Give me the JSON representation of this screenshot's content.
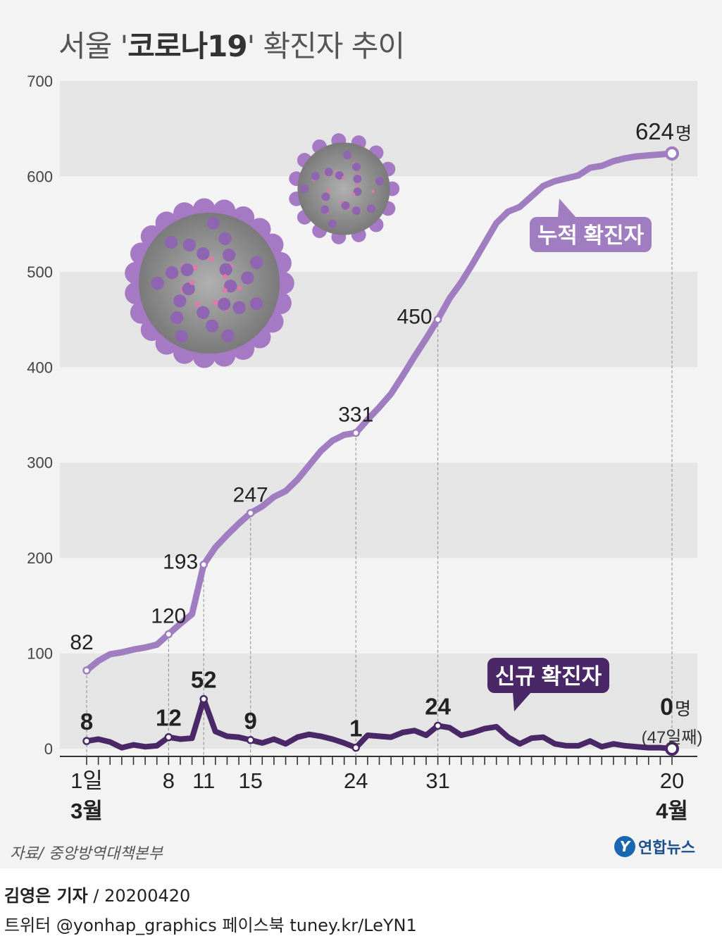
{
  "title": {
    "prefix": "서울 '",
    "bold": "코로나19",
    "suffix": "' 확진자 추이"
  },
  "source": "자료/ 중앙방역대책본부",
  "logo": {
    "mark": "Y",
    "text": "연합뉴스"
  },
  "credit": {
    "author": "김영은 기자",
    "date": " / 20200420",
    "sns": "트위터 @yonhap_graphics  페이스북 tuney.kr/LeYN1"
  },
  "colors": {
    "cumulative": "#a07cc0",
    "new": "#4a2868",
    "band": "#e5e5e5",
    "panel": "#f3f3f3"
  },
  "illustrations": [
    "coronavirus-particle-large",
    "coronavirus-particle-small"
  ],
  "chart_data": {
    "type": "line",
    "title": "서울 '코로나19' 확진자 추이",
    "ylim": [
      0,
      700
    ],
    "yticks": [
      0,
      100,
      200,
      300,
      400,
      500,
      600,
      700
    ],
    "x_days": 51,
    "xtick_labels": [
      {
        "day": 1,
        "label": "1일"
      },
      {
        "day": 8,
        "label": "8"
      },
      {
        "day": 11,
        "label": "11"
      },
      {
        "day": 15,
        "label": "15"
      },
      {
        "day": 24,
        "label": "24"
      },
      {
        "day": 31,
        "label": "31"
      },
      {
        "day": 51,
        "label": "20"
      }
    ],
    "month_labels": [
      {
        "day": 1,
        "label": "3월"
      },
      {
        "day": 51,
        "label": "4월"
      }
    ],
    "series": [
      {
        "name": "누적 확진자",
        "values": [
          82,
          92,
          99,
          101,
          104,
          106,
          109,
          120,
          131,
          141,
          193,
          211,
          224,
          236,
          247,
          254,
          264,
          270,
          282,
          297,
          312,
          323,
          329,
          331,
          345,
          358,
          372,
          391,
          411,
          430,
          450,
          472,
          489,
          509,
          530,
          551,
          563,
          568,
          579,
          590,
          595,
          598,
          601,
          609,
          611,
          616,
          619,
          621,
          622,
          623,
          624
        ],
        "annotations": [
          {
            "day": 1,
            "label": "82"
          },
          {
            "day": 8,
            "label": "120"
          },
          {
            "day": 11,
            "label": "193"
          },
          {
            "day": 15,
            "label": "247"
          },
          {
            "day": 24,
            "label": "331"
          },
          {
            "day": 31,
            "label": "450"
          },
          {
            "day": 51,
            "label": "624",
            "unit": "명"
          }
        ]
      },
      {
        "name": "신규 확진자",
        "values": [
          8,
          10,
          7,
          1,
          4,
          2,
          3,
          12,
          10,
          11,
          52,
          18,
          13,
          12,
          9,
          6,
          10,
          5,
          12,
          15,
          13,
          10,
          6,
          1,
          14,
          13,
          12,
          17,
          19,
          14,
          24,
          22,
          14,
          17,
          21,
          23,
          12,
          5,
          11,
          12,
          5,
          3,
          3,
          8,
          2,
          5,
          3,
          2,
          1,
          1,
          0
        ],
        "annotations": [
          {
            "day": 1,
            "label": "8"
          },
          {
            "day": 8,
            "label": "12"
          },
          {
            "day": 11,
            "label": "52"
          },
          {
            "day": 15,
            "label": "9"
          },
          {
            "day": 24,
            "label": "1"
          },
          {
            "day": 31,
            "label": "24"
          },
          {
            "day": 51,
            "label": "0",
            "unit": "명",
            "note": "(47일째)"
          }
        ]
      }
    ]
  }
}
